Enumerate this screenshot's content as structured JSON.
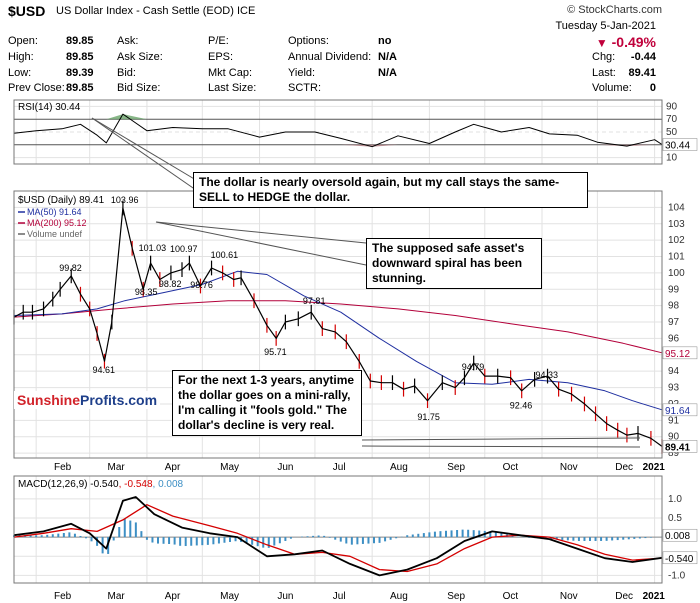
{
  "header": {
    "symbol": "$USD",
    "name": "US Dollar Index - Cash Settle (EOD)  ICE",
    "brand": "© StockCharts.com",
    "date": "Tuesday  5-Jan-2021",
    "change_pct": "-0.49%",
    "quote": {
      "open_label": "Open:",
      "open": "89.85",
      "high_label": "High:",
      "high": "89.85",
      "low_label": "Low:",
      "low": "89.39",
      "prev_label": "Prev Close:",
      "prev": "89.85",
      "ask_label": "Ask:",
      "ask_size_label": "Ask Size:",
      "bid_label": "Bid:",
      "bid_size_label": "Bid Size:",
      "pe_label": "P/E:",
      "eps_label": "EPS:",
      "mktcap_label": "Mkt Cap:",
      "lastsize_label": "Last Size:",
      "options_label": "Options:",
      "options": "no",
      "div_label": "Annual Dividend:",
      "div": "N/A",
      "yield_label": "Yield:",
      "yield": "N/A",
      "sctr_label": "SCTR:",
      "chg_label": "Chg:",
      "chg": "-0.44",
      "last_label": "Last:",
      "last": "89.41",
      "volume_label": "Volume:",
      "volume": "0"
    }
  },
  "annotations": {
    "callout_rsi": "The dollar is nearly oversold again, but my call stays the same- SELL to HEDGE the dollar.",
    "callout_spiral": "The supposed safe asset's downward spiral has been stunning.",
    "callout_gold": "For the next 1-3 years, anytime the dollar goes on a mini-rally, I'm calling it \"fools gold.\" The dollar's decline is very real.",
    "logo_a": "Sunshine",
    "logo_b": "Profits.com"
  },
  "colors": {
    "price": "#000000",
    "ma50": "#1f2fa0",
    "ma200": "#b3003a",
    "macd": "#000000",
    "signal": "#d40000",
    "hist": "#3d8fc4",
    "rsi_fill": "#b07a80",
    "grid": "#e2e2e2"
  },
  "chart_data": [
    {
      "type": "line",
      "panel": "rsi",
      "title": "RSI(14) 30.44",
      "y_ticks": [
        10,
        30,
        50,
        70,
        90
      ],
      "ylim": [
        0,
        100
      ],
      "last_value": "30.44",
      "x": [
        "2020-01-20",
        "2020-02-01",
        "2020-02-15",
        "2020-02-25",
        "2020-03-05",
        "2020-03-10",
        "2020-03-19",
        "2020-04-01",
        "2020-04-15",
        "2020-05-01",
        "2020-05-15",
        "2020-06-01",
        "2020-06-15",
        "2020-07-01",
        "2020-07-15",
        "2020-08-01",
        "2020-08-15",
        "2020-09-01",
        "2020-09-15",
        "2020-09-25",
        "2020-10-10",
        "2020-10-25",
        "2020-11-05",
        "2020-11-20",
        "2020-12-01",
        "2020-12-17",
        "2021-01-01",
        "2021-01-05"
      ],
      "values": [
        48,
        52,
        55,
        62,
        45,
        33,
        78,
        52,
        57,
        55,
        55,
        42,
        50,
        50,
        40,
        27,
        44,
        32,
        50,
        62,
        50,
        57,
        47,
        45,
        34,
        28,
        38,
        30.44
      ]
    },
    {
      "type": "line",
      "panel": "price",
      "title": "$USD (Daily) 89.41",
      "legend": [
        {
          "name": "MA(50) 91.64"
        },
        {
          "name": "MA(200) 95.12"
        },
        {
          "name": "Volume undef"
        }
      ],
      "x_ticks": [
        "Feb",
        "Mar",
        "Apr",
        "May",
        "Jun",
        "Jul",
        "Aug",
        "Sep",
        "Oct",
        "Nov",
        "Dec",
        "2021"
      ],
      "y_ticks": [
        89,
        90,
        91,
        92,
        93,
        94,
        95,
        96,
        97,
        98,
        99,
        100,
        101,
        102,
        103,
        104
      ],
      "ylim": [
        88.7,
        105
      ],
      "series": [
        {
          "name": "$USD",
          "x": [
            "2020-01-20",
            "2020-01-25",
            "2020-01-30",
            "2020-02-05",
            "2020-02-10",
            "2020-02-14",
            "2020-02-20",
            "2020-02-25",
            "2020-03-01",
            "2020-03-05",
            "2020-03-09",
            "2020-03-13",
            "2020-03-19",
            "2020-03-24",
            "2020-03-30",
            "2020-04-03",
            "2020-04-08",
            "2020-04-14",
            "2020-04-20",
            "2020-04-24",
            "2020-04-30",
            "2020-05-06",
            "2020-05-12",
            "2020-05-18",
            "2020-05-22",
            "2020-05-29",
            "2020-06-05",
            "2020-06-10",
            "2020-06-15",
            "2020-06-22",
            "2020-06-29",
            "2020-07-05",
            "2020-07-12",
            "2020-07-18",
            "2020-07-25",
            "2020-07-31",
            "2020-08-06",
            "2020-08-12",
            "2020-08-18",
            "2020-08-24",
            "2020-08-31",
            "2020-09-08",
            "2020-09-15",
            "2020-09-20",
            "2020-09-25",
            "2020-10-01",
            "2020-10-08",
            "2020-10-15",
            "2020-10-21",
            "2020-10-28",
            "2020-11-04",
            "2020-11-10",
            "2020-11-17",
            "2020-11-24",
            "2020-11-30",
            "2020-12-06",
            "2020-12-12",
            "2020-12-17",
            "2020-12-23",
            "2020-12-30",
            "2021-01-05"
          ],
          "values": [
            97.3,
            97.6,
            97.6,
            97.8,
            98.4,
            99.0,
            99.82,
            98.7,
            97.8,
            96.3,
            94.61,
            97.0,
            103.96,
            101.5,
            99.0,
            100.6,
            99.6,
            100.0,
            100.2,
            100.6,
            99.2,
            100.3,
            100.0,
            99.6,
            99.7,
            98.3,
            96.8,
            96.0,
            97.0,
            97.2,
            97.6,
            96.6,
            96.4,
            95.8,
            94.6,
            93.4,
            93.3,
            93.3,
            92.9,
            93.1,
            92.2,
            93.3,
            93.0,
            93.6,
            94.5,
            93.7,
            93.7,
            93.6,
            92.8,
            93.5,
            93.7,
            92.9,
            92.6,
            92.0,
            91.4,
            90.8,
            90.4,
            90.1,
            90.2,
            89.9,
            89.41
          ]
        },
        {
          "name": "MA(50)",
          "x": [
            "2020-01-20",
            "2020-02-15",
            "2020-03-05",
            "2020-03-20",
            "2020-04-10",
            "2020-05-01",
            "2020-05-20",
            "2020-06-05",
            "2020-06-25",
            "2020-07-15",
            "2020-08-05",
            "2020-08-25",
            "2020-09-15",
            "2020-10-05",
            "2020-10-25",
            "2020-11-15",
            "2020-12-05",
            "2020-12-20",
            "2021-01-05"
          ],
          "values": [
            97.4,
            97.5,
            97.8,
            98.3,
            98.8,
            99.3,
            100.1,
            99.9,
            98.6,
            97.6,
            96.0,
            94.6,
            93.3,
            93.2,
            93.5,
            93.3,
            92.8,
            92.2,
            91.64
          ]
        },
        {
          "name": "MA(200)",
          "x": [
            "2020-01-20",
            "2020-02-15",
            "2020-03-15",
            "2020-04-15",
            "2020-05-15",
            "2020-06-15",
            "2020-07-15",
            "2020-08-15",
            "2020-09-15",
            "2020-10-15",
            "2020-11-15",
            "2020-12-15",
            "2021-01-05"
          ],
          "values": [
            97.3,
            97.5,
            97.8,
            98.1,
            98.3,
            98.3,
            98.1,
            97.8,
            97.4,
            96.9,
            96.4,
            95.7,
            95.12
          ]
        }
      ],
      "data_labels": [
        {
          "x": "2020-02-20",
          "y": 99.82,
          "label": "99.82"
        },
        {
          "x": "2020-03-09",
          "y": 94.61,
          "label": "94.61"
        },
        {
          "x": "2020-03-19",
          "y": 103.96,
          "label": "103.96"
        },
        {
          "x": "2020-04-01",
          "y": 98.35,
          "label": "98.35"
        },
        {
          "x": "2020-04-03",
          "y": 101.03,
          "label": "101.03"
        },
        {
          "x": "2020-04-14",
          "y": 98.82,
          "label": "98.82"
        },
        {
          "x": "2020-04-20",
          "y": 100.97,
          "label": "100.97"
        },
        {
          "x": "2020-05-01",
          "y": 98.76,
          "label": "98.76"
        },
        {
          "x": "2020-05-12",
          "y": 100.61,
          "label": "100.61"
        },
        {
          "x": "2020-06-10",
          "y": 95.71,
          "label": "95.71"
        },
        {
          "x": "2020-07-01",
          "y": 97.81,
          "label": "97.81"
        },
        {
          "x": "2020-09-01",
          "y": 91.75,
          "label": "91.75"
        },
        {
          "x": "2020-09-25",
          "y": 94.79,
          "label": "94.79"
        },
        {
          "x": "2020-10-21",
          "y": 92.46,
          "label": "92.46"
        },
        {
          "x": "2020-11-04",
          "y": 94.33,
          "label": "94.33"
        }
      ],
      "right_tags": {
        "ma200": "95.12",
        "ma50": "91.64",
        "last": "89.41"
      }
    },
    {
      "type": "line",
      "panel": "macd",
      "title": "MACD(12,26,9) -0.540, -0.548, 0.008",
      "title_parts": [
        "MACD(12,26,9) -0.540",
        "-0.548",
        "0.008"
      ],
      "y_ticks": [
        -1.0,
        -0.5,
        0.0,
        0.5,
        1.0
      ],
      "ylim": [
        -1.2,
        1.6
      ],
      "right_tags": {
        "hist": "0.008",
        "macd": "-0.540"
      },
      "series": [
        {
          "name": "MACD",
          "x": [
            "2020-01-20",
            "2020-02-05",
            "2020-02-20",
            "2020-03-01",
            "2020-03-10",
            "2020-03-19",
            "2020-03-26",
            "2020-04-05",
            "2020-04-20",
            "2020-05-05",
            "2020-05-20",
            "2020-06-05",
            "2020-06-20",
            "2020-07-05",
            "2020-07-20",
            "2020-08-05",
            "2020-08-20",
            "2020-09-05",
            "2020-09-20",
            "2020-10-05",
            "2020-10-20",
            "2020-11-05",
            "2020-11-20",
            "2020-12-05",
            "2020-12-20",
            "2021-01-05"
          ],
          "values": [
            0.05,
            0.15,
            0.35,
            0.1,
            -0.3,
            0.95,
            1.05,
            0.6,
            0.25,
            0.1,
            0.0,
            -0.5,
            -0.45,
            -0.35,
            -0.7,
            -1.0,
            -0.85,
            -0.55,
            -0.1,
            0.15,
            0.05,
            -0.05,
            -0.3,
            -0.55,
            -0.65,
            -0.54
          ]
        },
        {
          "name": "Signal",
          "x": [
            "2020-01-20",
            "2020-02-05",
            "2020-02-20",
            "2020-03-05",
            "2020-03-19",
            "2020-04-01",
            "2020-04-15",
            "2020-05-05",
            "2020-05-20",
            "2020-06-05",
            "2020-06-20",
            "2020-07-05",
            "2020-07-20",
            "2020-08-05",
            "2020-08-20",
            "2020-09-05",
            "2020-09-20",
            "2020-10-05",
            "2020-10-20",
            "2020-11-05",
            "2020-11-20",
            "2020-12-05",
            "2020-12-20",
            "2021-01-05"
          ],
          "values": [
            0.0,
            0.1,
            0.22,
            0.15,
            0.45,
            0.85,
            0.55,
            0.3,
            0.1,
            -0.2,
            -0.45,
            -0.4,
            -0.5,
            -0.85,
            -0.9,
            -0.7,
            -0.3,
            0.0,
            0.05,
            0.0,
            -0.2,
            -0.45,
            -0.6,
            -0.548
          ]
        }
      ]
    }
  ]
}
